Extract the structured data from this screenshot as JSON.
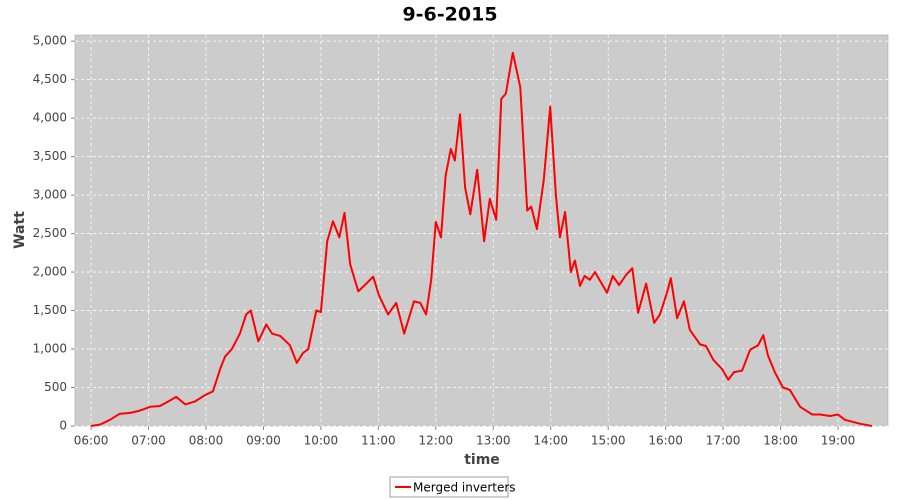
{
  "chart_data": {
    "type": "line",
    "title": "9-6-2015",
    "x_label": "time",
    "y_label": "Watt",
    "x": [
      6.0,
      6.16,
      6.33,
      6.5,
      6.68,
      6.85,
      7.03,
      7.2,
      7.37,
      7.48,
      7.64,
      7.81,
      7.98,
      8.12,
      8.25,
      8.33,
      8.45,
      8.59,
      8.7,
      8.78,
      8.91,
      9.05,
      9.15,
      9.29,
      9.46,
      9.58,
      9.69,
      9.78,
      9.92,
      10.0,
      10.11,
      10.21,
      10.32,
      10.41,
      10.51,
      10.65,
      10.79,
      10.91,
      11.01,
      11.17,
      11.31,
      11.45,
      11.62,
      11.73,
      11.83,
      11.92,
      12.0,
      12.09,
      12.17,
      12.26,
      12.33,
      12.42,
      12.51,
      12.6,
      12.72,
      12.84,
      12.94,
      13.05,
      13.14,
      13.22,
      13.34,
      13.47,
      13.59,
      13.66,
      13.76,
      13.88,
      13.99,
      14.09,
      14.16,
      14.25,
      14.35,
      14.42,
      14.51,
      14.59,
      14.68,
      14.77,
      14.98,
      15.08,
      15.19,
      15.31,
      15.42,
      15.52,
      15.66,
      15.8,
      15.9,
      16.01,
      16.09,
      16.2,
      16.32,
      16.42,
      16.6,
      16.7,
      16.83,
      16.98,
      17.09,
      17.19,
      17.33,
      17.47,
      17.61,
      17.7,
      17.78,
      17.9,
      18.04,
      18.16,
      18.34,
      18.55,
      18.69,
      18.86,
      19.0,
      19.12,
      19.38,
      19.59
    ],
    "series": [
      {
        "name": "Merged inverters",
        "color": "#ff0000",
        "values": [
          0,
          20,
          80,
          160,
          170,
          200,
          250,
          260,
          330,
          380,
          280,
          320,
          400,
          450,
          750,
          900,
          1000,
          1200,
          1450,
          1500,
          1100,
          1320,
          1200,
          1170,
          1050,
          820,
          950,
          1000,
          1500,
          1480,
          2400,
          2660,
          2450,
          2770,
          2100,
          1750,
          1850,
          1940,
          1700,
          1450,
          1600,
          1200,
          1620,
          1600,
          1450,
          1900,
          2650,
          2450,
          3250,
          3600,
          3450,
          4050,
          3100,
          2750,
          3330,
          2400,
          2950,
          2680,
          4250,
          4320,
          4850,
          4400,
          2800,
          2850,
          2560,
          3200,
          4150,
          3000,
          2450,
          2780,
          2000,
          2150,
          1820,
          1950,
          1900,
          2000,
          1730,
          1950,
          1830,
          1960,
          2050,
          1470,
          1850,
          1340,
          1450,
          1700,
          1920,
          1400,
          1620,
          1250,
          1060,
          1040,
          860,
          740,
          600,
          700,
          720,
          990,
          1050,
          1180,
          920,
          700,
          500,
          470,
          250,
          150,
          150,
          130,
          150,
          80,
          30,
          0
        ]
      }
    ],
    "xlim": [
      5.72,
      19.87
    ],
    "xticks": [
      {
        "value": 6,
        "label": "06:00"
      },
      {
        "value": 7,
        "label": "07:00"
      },
      {
        "value": 8,
        "label": "08:00"
      },
      {
        "value": 9,
        "label": "09:00"
      },
      {
        "value": 10,
        "label": "10:00"
      },
      {
        "value": 11,
        "label": "11:00"
      },
      {
        "value": 12,
        "label": "12:00"
      },
      {
        "value": 13,
        "label": "13:00"
      },
      {
        "value": 14,
        "label": "14:00"
      },
      {
        "value": 15,
        "label": "15:00"
      },
      {
        "value": 16,
        "label": "16:00"
      },
      {
        "value": 17,
        "label": "17:00"
      },
      {
        "value": 18,
        "label": "18:00"
      },
      {
        "value": 19,
        "label": "19:00"
      }
    ],
    "ylim": [
      0,
      5080
    ],
    "yticks": [
      0,
      500,
      {
        "value": 1000,
        "label": "1,000"
      },
      {
        "value": 1500,
        "label": "1,500"
      },
      {
        "value": 2000,
        "label": "2,000"
      },
      {
        "value": 2500,
        "label": "2,500"
      },
      {
        "value": 3000,
        "label": "3,000"
      },
      {
        "value": 3500,
        "label": "3,500"
      },
      {
        "value": 4000,
        "label": "4,000"
      },
      {
        "value": 4500,
        "label": "4,500"
      },
      {
        "value": 5000,
        "label": "5,000"
      }
    ],
    "grid": true,
    "legend": "bottom"
  }
}
